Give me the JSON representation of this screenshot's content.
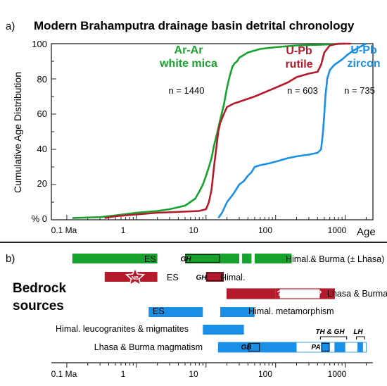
{
  "panel_a": {
    "label": "a)",
    "title": "Modern Brahamputra drainage basin detrital chronology",
    "ylabel": "Cumulative Age Distribution",
    "y_tick_labels": [
      "100",
      "80",
      "60",
      "40",
      "20",
      "% 0"
    ],
    "x_tick_labels": [
      "0.1 Ma",
      "1",
      "10",
      "100",
      "1000"
    ],
    "x_axis_word": "Age"
  },
  "panel_b": {
    "label": "b)",
    "heading_line1": "Bedrock",
    "heading_line2": "sources",
    "x_tick_labels": [
      "0.1 Ma",
      "1",
      "10",
      "100",
      "1000"
    ],
    "row1": {
      "left_label": "ES",
      "right_label": "Himal.& Burma (± Lhasa)",
      "box_label": "GH"
    },
    "row2": {
      "left_label": "ES",
      "right_label": "Himal.",
      "box_label": "GH",
      "star_label": "NB"
    },
    "row3": {
      "right_label": "Lhasa & Burma",
      "q1": "?",
      "q2": "?"
    },
    "row4": {
      "left_label": "ES",
      "right_label": "Himal. metamorphism"
    },
    "row5": {
      "left_label": "Himal. leucogranites & migmatites"
    },
    "row6": {
      "left_label": "Lhasa & Burma magmatism",
      "box_gb": "GB",
      "box_pa": "PA",
      "bracket1": "TH & GH",
      "bracket2": "LH"
    }
  },
  "colors": {
    "green": "#17a22e",
    "red": "#b51a2c",
    "blue": "#1a8fe6",
    "axis": "#222222"
  },
  "chart_data": [
    {
      "type": "line",
      "title": "Modern Brahamputra drainage basin detrital chronology",
      "xlabel": "Age",
      "ylabel": "Cumulative Age Distribution",
      "x_scale": "log",
      "xlim": [
        0.06,
        2500
      ],
      "ylim": [
        0,
        100
      ],
      "series": [
        {
          "name": "Ar-Ar white mica",
          "annotation": "n = 1440",
          "color": "#17a22e",
          "points": [
            [
              0.12,
              1
            ],
            [
              0.3,
              1.5
            ],
            [
              0.5,
              2.5
            ],
            [
              1,
              4
            ],
            [
              2,
              5
            ],
            [
              3,
              6
            ],
            [
              5,
              8
            ],
            [
              7,
              12
            ],
            [
              8,
              16
            ],
            [
              9,
              20
            ],
            [
              10,
              25
            ],
            [
              11,
              30
            ],
            [
              12,
              35
            ],
            [
              13,
              42
            ],
            [
              14,
              47
            ],
            [
              15,
              52
            ],
            [
              16,
              57
            ],
            [
              18,
              65
            ],
            [
              20,
              75
            ],
            [
              22,
              82
            ],
            [
              24,
              87
            ],
            [
              26,
              89
            ],
            [
              28,
              90
            ],
            [
              30,
              92
            ],
            [
              40,
              95
            ],
            [
              60,
              97
            ],
            [
              100,
              98
            ],
            [
              200,
              99
            ],
            [
              500,
              99.5
            ],
            [
              1000,
              100
            ]
          ]
        },
        {
          "name": "U-Pb rutile",
          "annotation": "n = 603",
          "color": "#b51a2c",
          "points": [
            [
              0.35,
              1
            ],
            [
              0.5,
              2
            ],
            [
              1,
              3
            ],
            [
              2,
              4
            ],
            [
              4,
              4.5
            ],
            [
              8,
              5
            ],
            [
              10,
              6
            ],
            [
              11,
              10
            ],
            [
              12,
              17
            ],
            [
              13,
              30
            ],
            [
              14,
              40
            ],
            [
              15,
              50
            ],
            [
              16,
              55
            ],
            [
              18,
              60
            ],
            [
              20,
              64
            ],
            [
              25,
              66
            ],
            [
              30,
              67
            ],
            [
              50,
              70
            ],
            [
              100,
              75
            ],
            [
              150,
              78
            ],
            [
              200,
              81
            ],
            [
              300,
              83
            ],
            [
              400,
              84
            ],
            [
              450,
              88
            ],
            [
              500,
              95
            ],
            [
              600,
              99
            ],
            [
              800,
              100
            ],
            [
              1200,
              100
            ]
          ]
        },
        {
          "name": "U-Pb zircon",
          "annotation": "n = 735",
          "color": "#1a8fe6",
          "points": [
            [
              15,
              1
            ],
            [
              17,
              4
            ],
            [
              20,
              10
            ],
            [
              25,
              15
            ],
            [
              30,
              20
            ],
            [
              35,
              22
            ],
            [
              40,
              25
            ],
            [
              45,
              27
            ],
            [
              50,
              30
            ],
            [
              60,
              31
            ],
            [
              80,
              32
            ],
            [
              100,
              33
            ],
            [
              150,
              35
            ],
            [
              200,
              36
            ],
            [
              300,
              37
            ],
            [
              400,
              38
            ],
            [
              450,
              40
            ],
            [
              480,
              50
            ],
            [
              500,
              60
            ],
            [
              520,
              70
            ],
            [
              550,
              80
            ],
            [
              600,
              85
            ],
            [
              700,
              88
            ],
            [
              900,
              91
            ],
            [
              1100,
              94
            ],
            [
              1300,
              96
            ],
            [
              1600,
              98
            ],
            [
              2000,
              100
            ]
          ]
        }
      ]
    },
    {
      "type": "bar",
      "title": "Bedrock sources",
      "x_scale": "log",
      "xlim": [
        0.06,
        2500
      ],
      "rows": [
        {
          "label": "Himal.& Burma (± Lhasa)",
          "color": "#17a22e",
          "ranges": [
            [
              0.12,
              2
            ],
            [
              5,
              30
            ],
            [
              33,
              45
            ],
            [
              50,
              170
            ]
          ],
          "boxes": [
            {
              "label": "GH",
              "range": [
                5,
                16
              ]
            }
          ]
        },
        {
          "label": "Himal.",
          "color": "#b51a2c",
          "ranges": [
            [
              0.35,
              2
            ],
            [
              10,
              18
            ]
          ],
          "boxes": [
            {
              "label": "GH",
              "range": [
                10,
                18
              ]
            }
          ]
        },
        {
          "label": "Lhasa & Burma",
          "color": "#b51a2c",
          "ranges": [
            [
              20,
              100
            ],
            [
              430,
              700
            ]
          ]
        },
        {
          "label": "Himal. metamorphism",
          "color": "#1a8fe6",
          "ranges": [
            [
              1.5,
              9
            ],
            [
              16,
              50
            ]
          ]
        },
        {
          "label": "Himal. leucogranites & migmatites",
          "color": "#1a8fe6",
          "ranges": [
            [
              9,
              35
            ]
          ]
        },
        {
          "label": "Lhasa & Burma magmatism",
          "color": "#1a8fe6",
          "ranges": [
            [
              15,
              200
            ],
            [
              450,
              600
            ],
            [
              700,
              1000
            ],
            [
              1500,
              1800
            ]
          ],
          "boxes": [
            {
              "label": "GB",
              "range": [
                40,
                60
              ]
            },
            {
              "label": "PA",
              "range": [
                450,
                600
              ]
            }
          ]
        }
      ]
    }
  ]
}
